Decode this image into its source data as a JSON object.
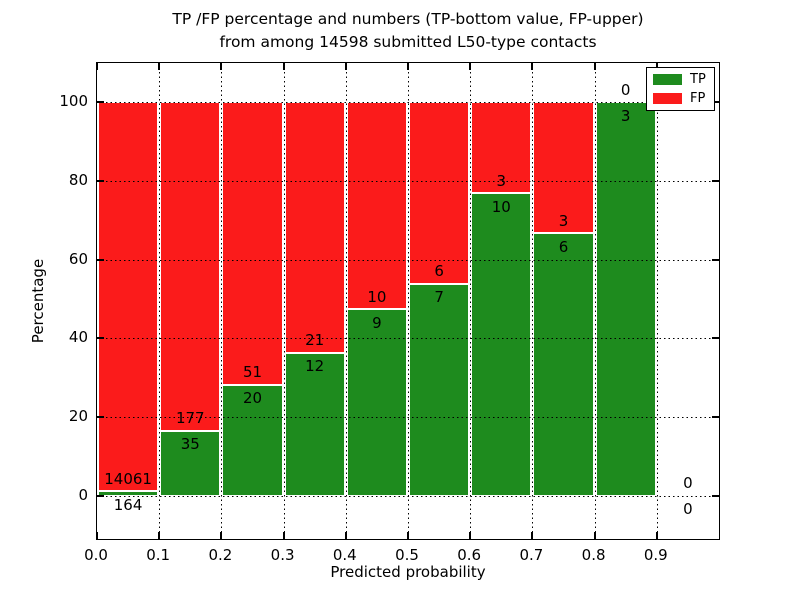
{
  "chart_data": {
    "type": "bar",
    "stacked": true,
    "normalized_to_percent": true,
    "title_line1": "TP /FP percentage and numbers (TP-bottom value, FP-upper)",
    "title_line2": "from among 14598 submitted L50-type contacts",
    "xlabel": "Predicted probability",
    "ylabel": "Percentage",
    "xlim": [
      0.0,
      1.0
    ],
    "ylim": [
      -11,
      110
    ],
    "grid": "dotted",
    "legend_position": "upper right",
    "categories": [
      "0.0-0.1",
      "0.1-0.2",
      "0.2-0.3",
      "0.3-0.4",
      "0.4-0.5",
      "0.5-0.6",
      "0.6-0.7",
      "0.7-0.8",
      "0.8-0.9",
      "0.9-1.0"
    ],
    "bin_edges": [
      0.0,
      0.1,
      0.2,
      0.3,
      0.4,
      0.5,
      0.6,
      0.7,
      0.8,
      0.9,
      1.0
    ],
    "series": [
      {
        "name": "TP",
        "color": "#1e8b1e",
        "counts": [
          164,
          35,
          20,
          12,
          9,
          7,
          10,
          6,
          3,
          0
        ]
      },
      {
        "name": "FP",
        "color": "#fb1b1b",
        "counts": [
          14061,
          177,
          51,
          21,
          10,
          6,
          3,
          3,
          0,
          0
        ]
      }
    ],
    "tp_percent": [
      1.2,
      16.5,
      28.2,
      36.4,
      47.4,
      53.8,
      76.9,
      66.7,
      100.0,
      0.0
    ],
    "total_contacts": 14598,
    "x_ticks": [
      {
        "v": 0.0,
        "label": "0.0"
      },
      {
        "v": 0.1,
        "label": "0.1"
      },
      {
        "v": 0.2,
        "label": "0.2"
      },
      {
        "v": 0.3,
        "label": "0.3"
      },
      {
        "v": 0.4,
        "label": "0.4"
      },
      {
        "v": 0.5,
        "label": "0.5"
      },
      {
        "v": 0.6,
        "label": "0.6"
      },
      {
        "v": 0.7,
        "label": "0.7"
      },
      {
        "v": 0.8,
        "label": "0.8"
      },
      {
        "v": 0.9,
        "label": "0.9"
      }
    ],
    "y_ticks": [
      {
        "v": 0,
        "label": "0"
      },
      {
        "v": 20,
        "label": "20"
      },
      {
        "v": 40,
        "label": "40"
      },
      {
        "v": 60,
        "label": "60"
      },
      {
        "v": 80,
        "label": "80"
      },
      {
        "v": 100,
        "label": "100"
      }
    ],
    "legend": [
      {
        "label": "TP",
        "color": "#1e8b1e"
      },
      {
        "label": "FP",
        "color": "#fb1b1b"
      }
    ]
  }
}
